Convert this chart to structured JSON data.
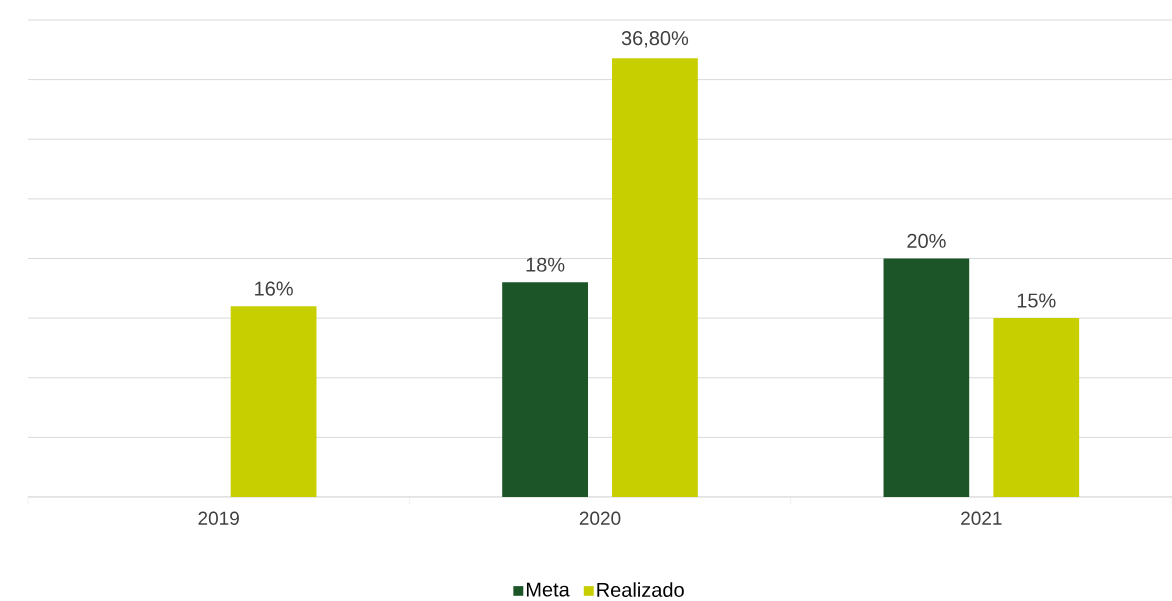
{
  "chart_data": {
    "type": "bar",
    "categories": [
      "2019",
      "2020",
      "2021"
    ],
    "series": [
      {
        "name": "Meta",
        "color": "#1c5528",
        "values": [
          null,
          18,
          20
        ],
        "value_labels": [
          null,
          "18%",
          "20%"
        ]
      },
      {
        "name": "Realizado",
        "color": "#c8cf00",
        "values": [
          16,
          36.8,
          15
        ],
        "value_labels": [
          "16%",
          "36,80%",
          "15%"
        ]
      }
    ],
    "ylim": [
      0,
      40
    ],
    "yticks": [
      {
        "value": 0,
        "label": null
      },
      {
        "value": 5,
        "label": null
      },
      {
        "value": 10,
        "label": null
      },
      {
        "value": 15,
        "label": null
      },
      {
        "value": 20,
        "label": null
      },
      {
        "value": 25,
        "label": null
      },
      {
        "value": 30,
        "label": null
      },
      {
        "value": 35,
        "label": null
      },
      {
        "value": 40,
        "label": null
      }
    ],
    "tick_labels": "x",
    "grid": "y",
    "legend": "bottom"
  }
}
